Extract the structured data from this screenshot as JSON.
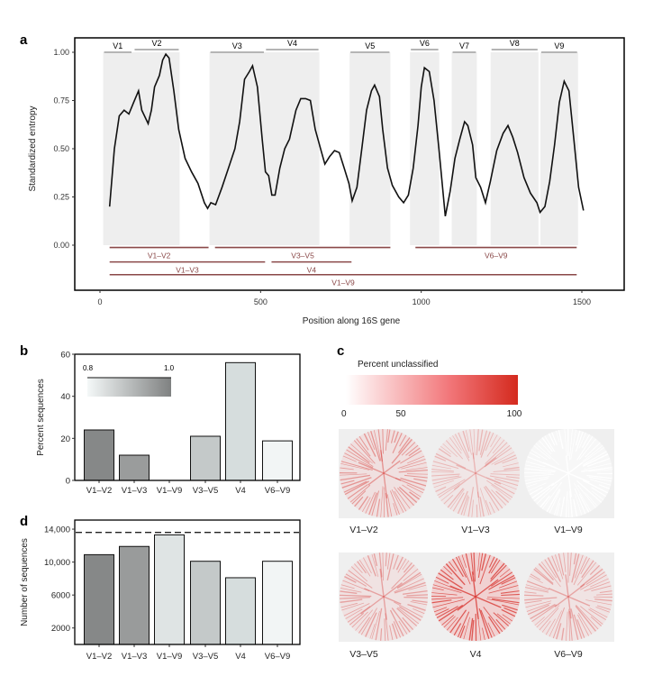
{
  "panel_labels": {
    "a": "a",
    "b": "b",
    "c": "c",
    "d": "d"
  },
  "chart_data": [
    {
      "panel": "a",
      "type": "line",
      "xlabel": "Position along 16S gene",
      "ylabel": "Standardized entropy",
      "xlim": [
        -70,
        1620
      ],
      "ylim": [
        -0.23,
        1.06
      ],
      "xticks": [
        0,
        500,
        1000,
        1500
      ],
      "yticks": [
        "0.00",
        "0.25",
        "0.50",
        "0.75",
        "1.00"
      ],
      "grid": false,
      "line_color": "#111111",
      "shade_color": "#eeeeee",
      "variable_regions": [
        {
          "name": "V1",
          "start": 10,
          "end": 101
        },
        {
          "name": "V2",
          "start": 105,
          "end": 248
        },
        {
          "name": "V3",
          "start": 341,
          "end": 513
        },
        {
          "name": "V4",
          "start": 514,
          "end": 683
        },
        {
          "name": "V5",
          "start": 777,
          "end": 904
        },
        {
          "name": "V6",
          "start": 965,
          "end": 1056
        },
        {
          "name": "V7",
          "start": 1095,
          "end": 1173
        },
        {
          "name": "V8",
          "start": 1216,
          "end": 1365
        },
        {
          "name": "V9",
          "start": 1371,
          "end": 1488
        }
      ],
      "shaded_blocks": [
        [
          10,
          248
        ],
        [
          341,
          683
        ],
        [
          777,
          904
        ],
        [
          965,
          1056
        ],
        [
          1095,
          1173
        ],
        [
          1216,
          1365
        ],
        [
          1371,
          1488
        ]
      ],
      "amplicons": [
        {
          "name": "V1–V2",
          "start": 30,
          "end": 338,
          "row": 0
        },
        {
          "name": "V3–V5",
          "start": 358,
          "end": 904,
          "row": 0
        },
        {
          "name": "V6–V9",
          "start": 982,
          "end": 1484,
          "row": 0
        },
        {
          "name": "V1–V3",
          "start": 30,
          "end": 514,
          "row": 1
        },
        {
          "name": "V4",
          "start": 534,
          "end": 783,
          "row": 1
        },
        {
          "name": "V1–V9",
          "start": 30,
          "end": 1484,
          "row": 2
        }
      ],
      "amplicon_color": "#8a4848",
      "x": [
        30,
        45,
        60,
        75,
        90,
        105,
        120,
        130,
        150,
        160,
        170,
        185,
        195,
        205,
        215,
        230,
        245,
        265,
        285,
        305,
        325,
        335,
        345,
        360,
        380,
        400,
        420,
        435,
        450,
        465,
        475,
        490,
        505,
        515,
        525,
        535,
        545,
        560,
        575,
        590,
        610,
        625,
        640,
        655,
        670,
        690,
        700,
        715,
        730,
        745,
        760,
        775,
        785,
        800,
        815,
        830,
        845,
        855,
        870,
        880,
        895,
        910,
        930,
        945,
        960,
        975,
        990,
        1000,
        1010,
        1025,
        1040,
        1055,
        1075,
        1090,
        1105,
        1120,
        1135,
        1145,
        1160,
        1170,
        1185,
        1200,
        1215,
        1235,
        1255,
        1270,
        1285,
        1300,
        1320,
        1340,
        1360,
        1370,
        1385,
        1400,
        1415,
        1430,
        1445,
        1460,
        1475,
        1490,
        1505
      ],
      "y": [
        0.2,
        0.5,
        0.67,
        0.7,
        0.68,
        0.74,
        0.8,
        0.7,
        0.63,
        0.7,
        0.82,
        0.88,
        0.96,
        0.99,
        0.97,
        0.8,
        0.6,
        0.45,
        0.38,
        0.32,
        0.22,
        0.19,
        0.22,
        0.21,
        0.3,
        0.4,
        0.5,
        0.64,
        0.86,
        0.9,
        0.93,
        0.82,
        0.55,
        0.38,
        0.36,
        0.26,
        0.26,
        0.4,
        0.5,
        0.55,
        0.7,
        0.76,
        0.76,
        0.75,
        0.6,
        0.48,
        0.42,
        0.46,
        0.49,
        0.48,
        0.4,
        0.32,
        0.23,
        0.3,
        0.5,
        0.7,
        0.8,
        0.83,
        0.77,
        0.6,
        0.4,
        0.31,
        0.25,
        0.22,
        0.26,
        0.4,
        0.62,
        0.82,
        0.92,
        0.9,
        0.75,
        0.5,
        0.15,
        0.28,
        0.45,
        0.55,
        0.64,
        0.62,
        0.52,
        0.35,
        0.3,
        0.22,
        0.33,
        0.49,
        0.58,
        0.62,
        0.56,
        0.48,
        0.35,
        0.27,
        0.22,
        0.17,
        0.2,
        0.33,
        0.52,
        0.74,
        0.85,
        0.8,
        0.55,
        0.3,
        0.18
      ]
    },
    {
      "panel": "b",
      "type": "bar",
      "ylabel": "Percent sequences",
      "categories": [
        "V1–V2",
        "V1–V3",
        "V1–V9",
        "V3–V5",
        "V4",
        "V6–V9"
      ],
      "values": [
        24,
        12,
        0,
        21,
        56,
        18.8
      ],
      "colors": [
        "#868888",
        "#9a9c9c",
        "#e6eaea",
        "#c4c9c9",
        "#d6dddd",
        "#f2f5f5"
      ],
      "ylim": [
        0,
        60
      ],
      "yticks": [
        "0",
        "20",
        "40",
        "60"
      ],
      "colorbar": {
        "min_label": "0.8",
        "max_label": "1.0",
        "from": "#f4f8f8",
        "to": "#7f8181"
      }
    },
    {
      "panel": "c",
      "type": "heatmap",
      "colorbar_title": "Percent unclassified",
      "colorbar_ticks": [
        "0",
        "50",
        "100"
      ],
      "colorbar_from": "#ffffff",
      "colorbar_to": "#d42a1e",
      "trees": [
        {
          "name": "V1–V2",
          "level": 0.25
        },
        {
          "name": "V1–V3",
          "level": 0.1
        },
        {
          "name": "V1–V9",
          "level": 0.0
        },
        {
          "name": "V3–V5",
          "level": 0.2
        },
        {
          "name": "V4",
          "level": 0.55
        },
        {
          "name": "V6–V9",
          "level": 0.18
        }
      ]
    },
    {
      "panel": "d",
      "type": "bar",
      "ylabel": "Number of sequences",
      "categories": [
        "V1–V2",
        "V1–V3",
        "V1–V9",
        "V3–V5",
        "V4",
        "V6–V9"
      ],
      "values": [
        10900,
        11900,
        13300,
        10100,
        8100,
        10100
      ],
      "colors": [
        "#868888",
        "#999b9b",
        "#dfe4e4",
        "#c4c9c9",
        "#d6dddd",
        "#f2f5f5"
      ],
      "ylim": [
        0,
        15100
      ],
      "yticks": [
        2000,
        6000,
        10000,
        14000
      ],
      "ytick_labels": [
        "2000",
        "6000",
        "10,000",
        "14,000"
      ],
      "reference_line": 13600
    }
  ]
}
